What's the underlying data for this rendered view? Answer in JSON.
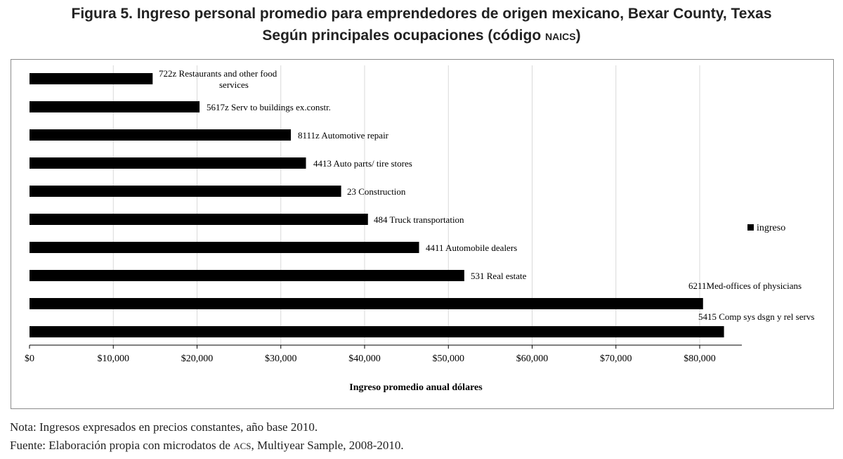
{
  "title": {
    "line1": "Figura 5. Ingreso personal promedio para emprendedores de origen mexicano, Bexar County, Texas",
    "line2_text": "Según principales ocupaciones (código ",
    "line2_small": "NAICS",
    "line2_end": ")"
  },
  "notes": {
    "nota": "Nota: Ingresos expresados en precios constantes, año base 2010.",
    "fuente_before": "Fuente: Elaboración propia con microdatos de ",
    "fuente_small": "ACS",
    "fuente_after": ", Multiyear Sample, 2008-2010."
  },
  "chart_data": {
    "type": "bar",
    "orientation": "horizontal",
    "categories": [
      "722z Restaurants and other food services",
      "5617z Serv to buildings ex.constr.",
      "8111z Automotive repair",
      "4413 Auto parts/ tire stores",
      "23 Construction",
      "484 Truck transportation",
      "4411 Automobile dealers",
      "531 Real estate",
      "6211Med-offices of physicians",
      "5415 Comp sys dsgn y rel servs"
    ],
    "series": [
      {
        "name": "ingreso",
        "color": "#000000",
        "values": [
          14700,
          20300,
          31200,
          33000,
          37200,
          40400,
          46500,
          51900,
          80400,
          82900
        ]
      }
    ],
    "xlabel": "Ingreso  promedio anual dólares",
    "ylabel": "",
    "xlim": [
      0,
      85000
    ],
    "x_ticks": [
      0,
      10000,
      20000,
      30000,
      40000,
      50000,
      60000,
      70000,
      80000
    ],
    "x_tick_labels": [
      "$0",
      "$10,000",
      "$20,000",
      "$30,000",
      "$40,000",
      "$50,000",
      "$60,000",
      "$70,000",
      "$80,000"
    ],
    "grid": true,
    "legend": "right"
  }
}
